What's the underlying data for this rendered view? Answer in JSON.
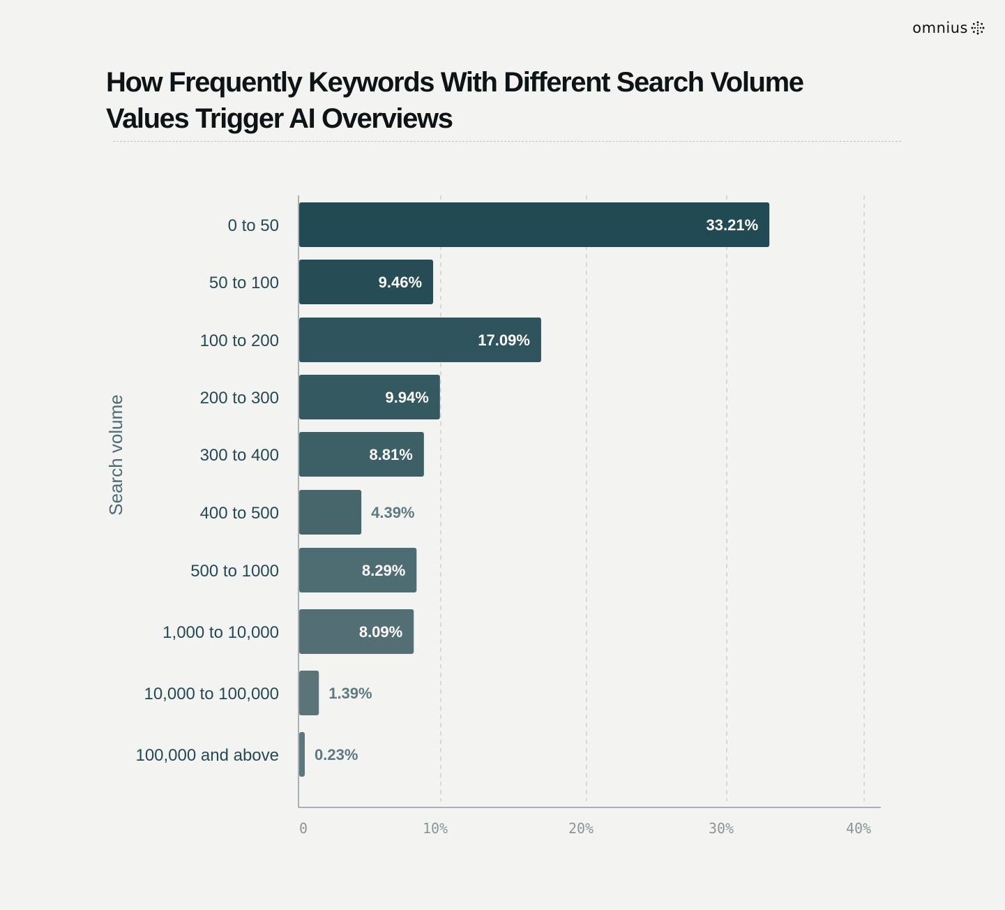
{
  "brand": {
    "name": "omnius"
  },
  "chart_data": {
    "type": "bar",
    "orientation": "horizontal",
    "title": "How Frequently Keywords With Different Search Volume Values Trigger AI Overviews",
    "ylabel": "Search volume",
    "xlabel": "",
    "categories": [
      "0 to 50",
      "50 to 100",
      "100 to 200",
      "200 to 300",
      "300 to 400",
      "400 to 500",
      "500 to 1000",
      "1,000 to 10,000",
      "10,000 to 100,000",
      "100,000 and above"
    ],
    "values": [
      33.21,
      9.46,
      17.09,
      9.94,
      8.81,
      4.39,
      8.29,
      8.09,
      1.39,
      0.23
    ],
    "value_labels": [
      "33.21%",
      "9.46%",
      "17.09%",
      "9.94%",
      "8.81%",
      "4.39%",
      "8.29%",
      "8.09%",
      "1.39%",
      "0.23%"
    ],
    "xlim": [
      0,
      40
    ],
    "xticks": [
      0,
      10,
      20,
      30,
      40
    ],
    "xtick_labels": [
      "0",
      "10%",
      "20%",
      "30%",
      "40%"
    ],
    "grid": "vertical dashed",
    "legend": "none",
    "bar_colors": [
      "#224a54",
      "#264c56",
      "#2f545d",
      "#355960",
      "#3d5f66",
      "#46666c",
      "#4e6d73",
      "#536f75",
      "#5a7479",
      "#5f777c"
    ],
    "label_colors": {
      "inside": "#ffffff",
      "outside": "#5d7a80",
      "category": "#254a54",
      "axis_title": "#4d6b72",
      "tick": "#8a969b"
    }
  }
}
